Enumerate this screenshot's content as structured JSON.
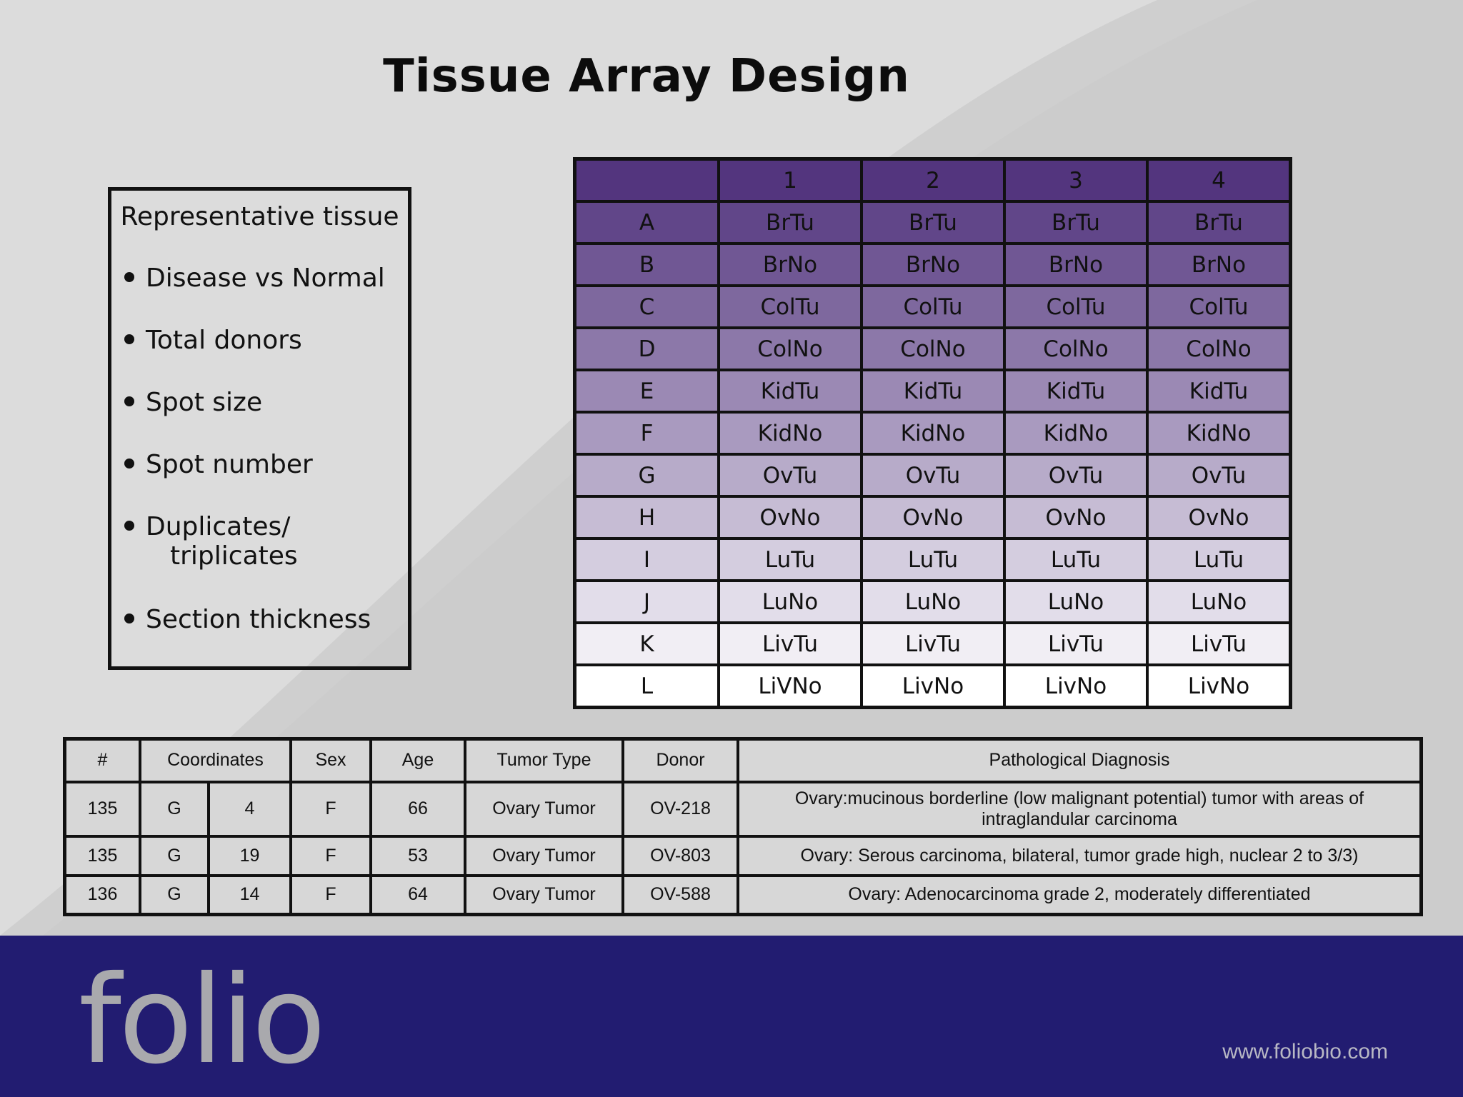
{
  "slide": {
    "title": "Tissue Array Design"
  },
  "bullet_box": {
    "heading": "Representative tissue",
    "items": [
      {
        "line1": "Disease vs Normal"
      },
      {
        "line1": "Total donors"
      },
      {
        "line1": "Spot size"
      },
      {
        "line1": "Spot number"
      },
      {
        "line1": "Duplicates/",
        "line2": "triplicates"
      },
      {
        "line1": "Section thickness"
      }
    ]
  },
  "array_grid": {
    "col_headers": [
      "1",
      "2",
      "3",
      "4"
    ],
    "rows": [
      {
        "label": "A",
        "cells": [
          "BrTu",
          "BrTu",
          "BrTu",
          "BrTu"
        ]
      },
      {
        "label": "B",
        "cells": [
          "BrNo",
          "BrNo",
          "BrNo",
          "BrNo"
        ]
      },
      {
        "label": "C",
        "cells": [
          "ColTu",
          "ColTu",
          "ColTu",
          "ColTu"
        ]
      },
      {
        "label": "D",
        "cells": [
          "ColNo",
          "ColNo",
          "ColNo",
          "ColNo"
        ]
      },
      {
        "label": "E",
        "cells": [
          "KidTu",
          "KidTu",
          "KidTu",
          "KidTu"
        ]
      },
      {
        "label": "F",
        "cells": [
          "KidNo",
          "KidNo",
          "KidNo",
          "KidNo"
        ]
      },
      {
        "label": "G",
        "cells": [
          "OvTu",
          "OvTu",
          "OvTu",
          "OvTu"
        ]
      },
      {
        "label": "H",
        "cells": [
          "OvNo",
          "OvNo",
          "OvNo",
          "OvNo"
        ]
      },
      {
        "label": "I",
        "cells": [
          "LuTu",
          "LuTu",
          "LuTu",
          "LuTu"
        ]
      },
      {
        "label": "J",
        "cells": [
          "LuNo",
          "LuNo",
          "LuNo",
          "LuNo"
        ]
      },
      {
        "label": "K",
        "cells": [
          "LivTu",
          "LivTu",
          "LivTu",
          "LivTu"
        ]
      },
      {
        "label": "L",
        "cells": [
          "LiVNo",
          "LivNo",
          "LivNo",
          "LivNo"
        ]
      }
    ],
    "colors": {
      "top": "#53357e",
      "bottom": "#ffffff"
    }
  },
  "donor_table": {
    "headers": {
      "num": "#",
      "coordinates": "Coordinates",
      "sex": "Sex",
      "age": "Age",
      "tumor_type": "Tumor Type",
      "donor": "Donor",
      "diagnosis": "Pathological Diagnosis"
    },
    "rows": [
      {
        "num": "135",
        "row": "G",
        "col": "4",
        "sex": "F",
        "age": "66",
        "tumor_type": "Ovary Tumor",
        "donor": "OV-218",
        "diagnosis": "Ovary:mucinous borderline (low malignant potential) tumor with areas of intraglandular carcinoma"
      },
      {
        "num": "135",
        "row": "G",
        "col": "19",
        "sex": "F",
        "age": "53",
        "tumor_type": "Ovary Tumor",
        "donor": "OV-803",
        "diagnosis": "Ovary: Serous carcinoma, bilateral, tumor grade high, nuclear 2 to 3/3)"
      },
      {
        "num": "136",
        "row": "G",
        "col": "14",
        "sex": "F",
        "age": "64",
        "tumor_type": "Ovary Tumor",
        "donor": "OV-588",
        "diagnosis": "Ovary: Adenocarcinoma grade 2, moderately differentiated"
      }
    ]
  },
  "footer": {
    "logo": "folio",
    "website": "www.foliobio.com",
    "color": "#221c71"
  }
}
